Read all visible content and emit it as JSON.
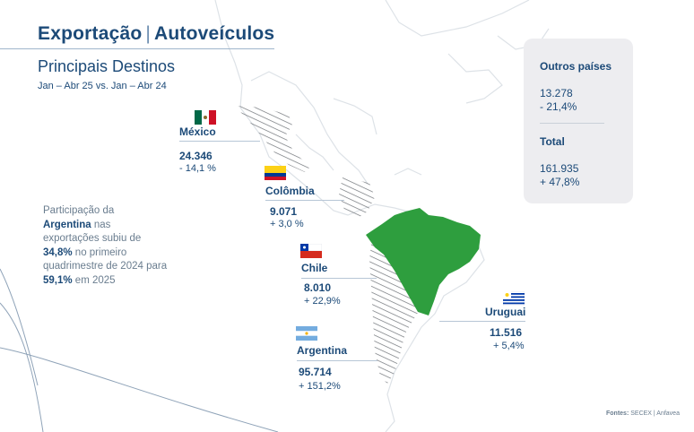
{
  "header": {
    "title_part1": "Exportação",
    "title_separator": "|",
    "title_part2": "Autoveículos",
    "subtitle": "Principais Destinos",
    "period": "Jan – Abr 25 vs. Jan – Abr 24"
  },
  "destinations": {
    "mexico": {
      "name": "México",
      "value": "24.346",
      "change": "- 14,1 %"
    },
    "colombia": {
      "name": "Colômbia",
      "value": "9.071",
      "change": "+ 3,0 %"
    },
    "chile": {
      "name": "Chile",
      "value": "8.010",
      "change": "+ 22,9%"
    },
    "argentina": {
      "name": "Argentina",
      "value": "95.714",
      "change": "+ 151,2%"
    },
    "uruguai": {
      "name": "Uruguai",
      "value": "11.516",
      "change": "+ 5,4%"
    }
  },
  "note": {
    "p1": "Participação da",
    "p2": "Argentina",
    "p3": " nas exportações subiu de ",
    "p4": "34,8%",
    "p5": " no primeiro quadrimestre de 2024 para ",
    "p6": "59,1%",
    "p7": " em 2025"
  },
  "summary_card": {
    "others_label": "Outros países",
    "others_value": "13.278",
    "others_change": "- 21,4%",
    "total_label": "Total",
    "total_value": "161.935",
    "total_change": "+ 47,8%"
  },
  "source": {
    "label": "Fontes:",
    "text": " SECEX | Anfavea"
  },
  "colors": {
    "brand_blue": "#1c4a78",
    "brazil_green": "#2e9e3e",
    "map_outline": "#d9dee4",
    "card_bg": "#ededf0"
  }
}
